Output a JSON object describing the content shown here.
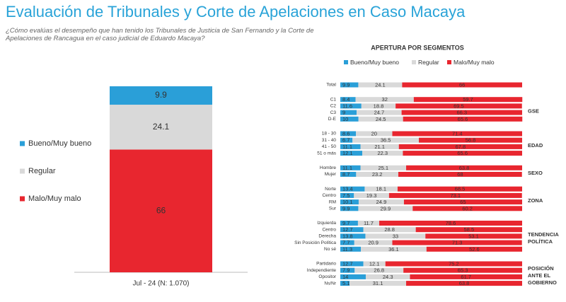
{
  "header": {
    "title": "Evaluación de Tribunales y Corte de Apelaciones en Caso Macaya",
    "subtitle": "¿Cómo evalúas el desempeño que han tenido los Tribunales de Justicia de San Fernando y la Corte de Apelaciones de Rancagua en el caso judicial de Eduardo Macaya?"
  },
  "chart_data": [
    {
      "type": "bar",
      "stacked": true,
      "categories": [
        "Jul - 24 (N: 1.070)"
      ],
      "ylim": [
        0,
        100
      ],
      "series": [
        {
          "name": "Bueno/Muy bueno",
          "color": "#2a9fd8",
          "values": [
            9.9
          ]
        },
        {
          "name": "Regular",
          "color": "#d9d9d9",
          "values": [
            24.1
          ]
        },
        {
          "name": "Malo/Muy malo",
          "color": "#e8262f",
          "values": [
            66
          ]
        }
      ]
    },
    {
      "type": "barh",
      "stacked": true,
      "title": "APERTURA POR SEGMENTOS",
      "xlim": [
        0,
        100
      ],
      "groups": [
        {
          "categories": [
            "Total"
          ]
        },
        {
          "label": [
            "GSE"
          ],
          "categories": [
            "C1",
            "C2",
            "C3",
            "D-E"
          ]
        },
        {
          "label": [
            "EDAD"
          ],
          "categories": [
            "18 - 30",
            "31 - 40",
            "41 - 50",
            "51 o más"
          ]
        },
        {
          "label": [
            "SEXO"
          ],
          "categories": [
            "Hombre",
            "Mujer"
          ]
        },
        {
          "label": [
            "ZONA"
          ],
          "categories": [
            "Norte",
            "Centro",
            "RM",
            "Sur"
          ]
        },
        {
          "label": [
            "TENDENCIA",
            "POLÍTICA"
          ],
          "categories": [
            "Izquierda",
            "Centro",
            "Derecha",
            "Sin Posición Política",
            "No sé"
          ]
        },
        {
          "label": [
            "POSICIÓN",
            "ANTE EL",
            "GOBIERNO"
          ],
          "categories": [
            "Partidario",
            "Independiente",
            "Opositor",
            "Ns/Nr"
          ]
        }
      ],
      "series": [
        {
          "name": "Bueno/Muy bueno",
          "color": "#2a9fd8",
          "values": [
            9.9,
            8.4,
            11.6,
            9,
            10,
            8.6,
            6.7,
            11.1,
            12.1,
            11.1,
            8.7,
            13.4,
            7.5,
            10.1,
            9.9,
            9.7,
            12.7,
            13.8,
            7.7,
            11.3,
            12.7,
            7.9,
            14,
            5.1
          ]
        },
        {
          "name": "Regular",
          "color": "#d9d9d9",
          "values": [
            24.1,
            32,
            18.8,
            24.7,
            24.5,
            20,
            36.5,
            21.1,
            22.3,
            25.1,
            23.2,
            18.1,
            19.3,
            24.9,
            29.9,
            11.7,
            28.8,
            33,
            20.9,
            36.1,
            12.1,
            26.8,
            24.3,
            31.1
          ]
        },
        {
          "name": "Malo/Muy malo",
          "color": "#e8262f",
          "values": [
            66,
            59.7,
            69.5,
            66.3,
            65.6,
            71.4,
            56.8,
            67.8,
            65.6,
            63.8,
            68,
            68.5,
            73.1,
            65,
            60.2,
            78.6,
            58.5,
            53.1,
            71.3,
            52.6,
            75.2,
            65.3,
            61.7,
            63.8
          ]
        }
      ]
    }
  ]
}
